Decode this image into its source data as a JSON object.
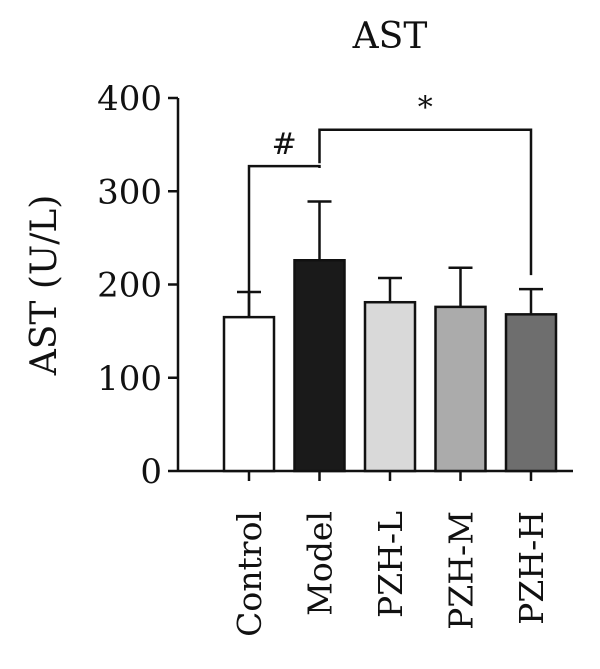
{
  "chart_data": {
    "type": "bar",
    "title": "AST",
    "xlabel": "",
    "ylabel": "AST (U/L)",
    "ylim": [
      0,
      400
    ],
    "yticks": [
      0,
      100,
      200,
      300,
      400
    ],
    "categories": [
      "Control",
      "Model",
      "PZH-L",
      "PZH-M",
      "PZH-H"
    ],
    "values": [
      165,
      226,
      181,
      176,
      168
    ],
    "errors": [
      27,
      63,
      26,
      42,
      27
    ],
    "bar_colors": [
      "#ffffff",
      "#1a1a1a",
      "#d9d9d9",
      "#ababab",
      "#6e6e6e"
    ],
    "significance": [
      {
        "label": "#",
        "from": "Control",
        "to": "Model",
        "left_y": 165,
        "right_y": 325,
        "bracket_y": 327
      },
      {
        "label": "*",
        "from": "Model",
        "to": "PZH-H",
        "left_y": 330,
        "right_y": 210,
        "bracket_y": 366
      }
    ],
    "grid": false,
    "legend": "none"
  }
}
